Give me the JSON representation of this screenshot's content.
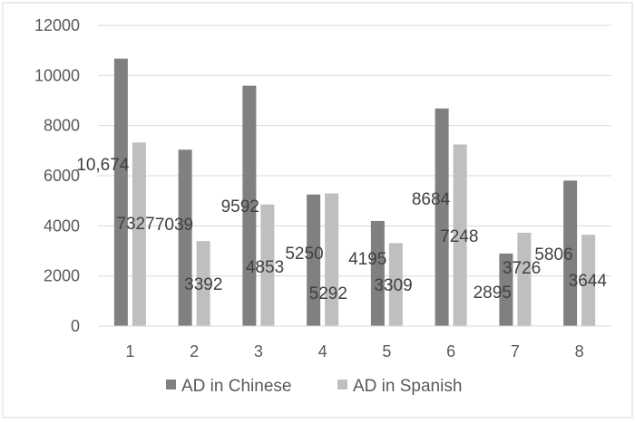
{
  "chart_data": {
    "type": "bar",
    "categories": [
      "1",
      "2",
      "3",
      "4",
      "5",
      "6",
      "7",
      "8"
    ],
    "series": [
      {
        "name": "AD in Chinese",
        "color": "#808080",
        "values": [
          10674,
          7039,
          9592,
          5250,
          4195,
          8684,
          2895,
          5806
        ],
        "labels": [
          "10,674",
          "7039",
          "9592",
          "5250",
          "4195",
          "8684",
          "2895",
          "5806"
        ]
      },
      {
        "name": "AD in Spanish",
        "color": "#bfbfbf",
        "values": [
          7327,
          3392,
          4853,
          5292,
          3309,
          7248,
          3726,
          3644
        ],
        "labels": [
          "7327",
          "3392",
          "4853",
          "5292",
          "3309",
          "7248",
          "3726",
          "3644"
        ]
      }
    ],
    "ylim": [
      0,
      12000
    ],
    "yticks": [
      "0",
      "2000",
      "4000",
      "6000",
      "8000",
      "10000",
      "12000"
    ],
    "grid": true,
    "legend_position": "bottom"
  }
}
